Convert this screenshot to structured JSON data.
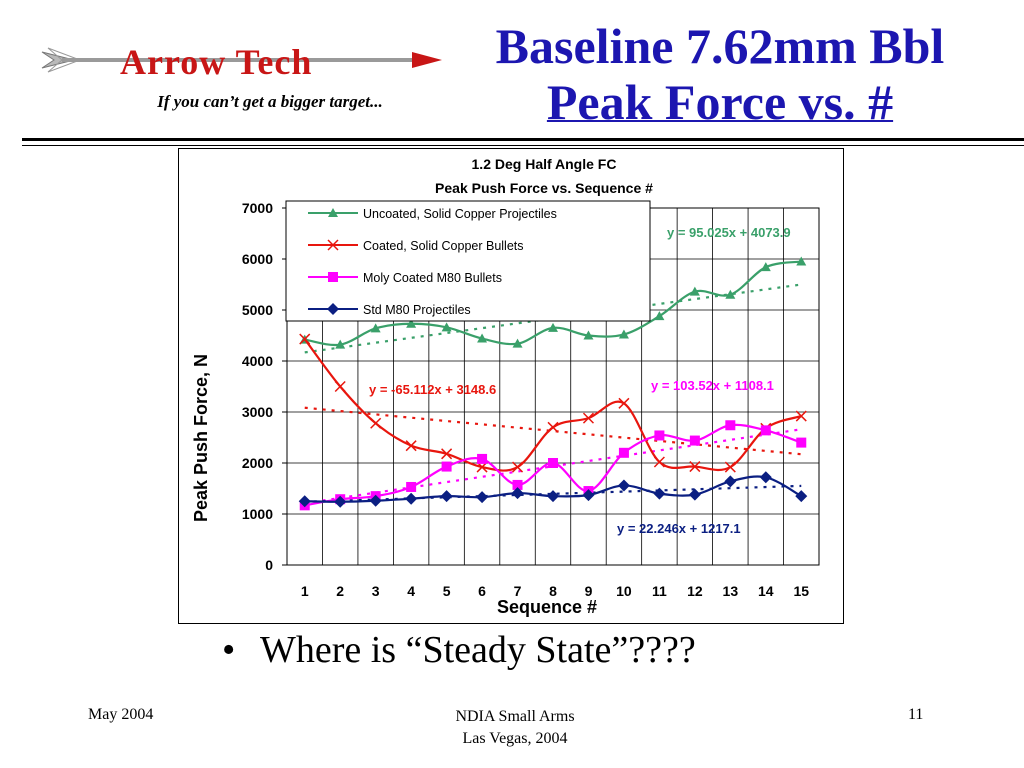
{
  "header": {
    "logo_text": "Arrow Tech",
    "tagline": "If you can’t get a bigger target...",
    "title_line1": "Baseline 7.62mm Bbl",
    "title_line2": "Peak Force vs. #"
  },
  "bullet": {
    "text": "Where is “Steady State”????"
  },
  "footer": {
    "date": "May 2004",
    "event_line1": "NDIA Small Arms",
    "event_line2": "Las Vegas, 2004",
    "page": "11"
  },
  "colors": {
    "title": "#1c16b0",
    "uncoated": "#3aa06a",
    "coated": "#e8160e",
    "moly": "#ff00ff",
    "std": "#0b1f82"
  },
  "chart_data": {
    "type": "line",
    "title": "1.2 Deg Half Angle FC",
    "subtitle": "Peak Push Force vs. Sequence #",
    "xlabel": "Sequence #",
    "ylabel": "Peak Push Force, N",
    "x": [
      1,
      2,
      3,
      4,
      5,
      6,
      7,
      8,
      9,
      10,
      11,
      12,
      13,
      14,
      15
    ],
    "ylim": [
      0,
      7000
    ],
    "yticks": [
      0,
      1000,
      2000,
      3000,
      4000,
      5000,
      6000,
      7000
    ],
    "grid": true,
    "legend_position": "top-left",
    "series": [
      {
        "name": "Uncoated, Solid Copper Projectiles",
        "color": "#3aa06a",
        "marker": "triangle",
        "values": [
          4420,
          4320,
          4640,
          4730,
          4660,
          4440,
          4340,
          4650,
          4500,
          4520,
          4880,
          5360,
          5300,
          5840,
          5950
        ],
        "trend": {
          "slope": 95.025,
          "intercept": 4073.9,
          "label": "y = 95.025x + 4073.9"
        }
      },
      {
        "name": "Coated, Solid Copper Bullets",
        "color": "#e8160e",
        "marker": "x",
        "values": [
          4430,
          3500,
          2780,
          2340,
          2180,
          1920,
          1920,
          2700,
          2880,
          3170,
          2020,
          1930,
          1920,
          2680,
          2920
        ],
        "trend": {
          "slope": -65.112,
          "intercept": 3148.6,
          "label": "y = -65.112x + 3148.6"
        }
      },
      {
        "name": "Moly Coated M80 Bullets",
        "color": "#ff00ff",
        "marker": "square",
        "values": [
          1170,
          1290,
          1350,
          1530,
          1930,
          2080,
          1570,
          2000,
          1450,
          2200,
          2540,
          2440,
          2740,
          2640,
          2400
        ],
        "trend": {
          "slope": 103.52,
          "intercept": 1108.1,
          "label": "y = 103.52x + 1108.1"
        }
      },
      {
        "name": "Std M80 Projectiles",
        "color": "#0b1f82",
        "marker": "diamond",
        "values": [
          1250,
          1240,
          1260,
          1300,
          1350,
          1330,
          1410,
          1350,
          1370,
          1560,
          1400,
          1380,
          1640,
          1720,
          1350
        ],
        "trend": {
          "slope": 22.246,
          "intercept": 1217.1,
          "label": "y = 22.246x + 1217.1"
        }
      }
    ]
  }
}
